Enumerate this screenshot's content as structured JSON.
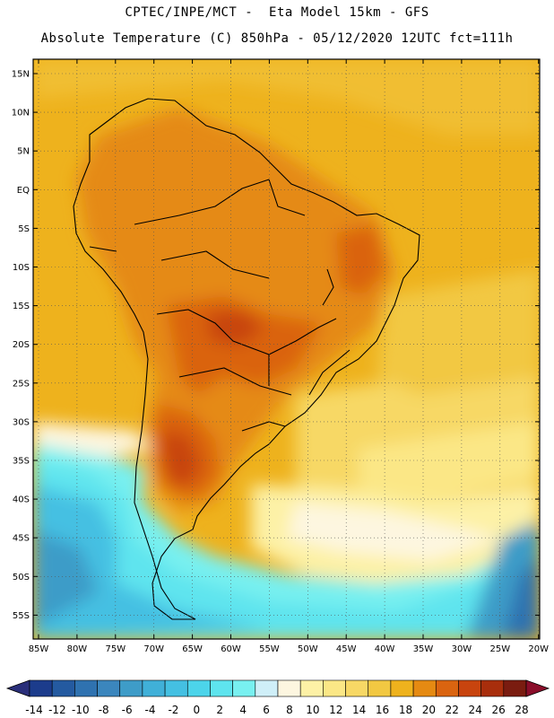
{
  "header": {
    "line1": "CPTEC/INPE/MCT -  Eta Model 15km - GFS",
    "line2": "Absolute Temperature (C) 850hPa - 05/12/2020 12UTC fct=111h"
  },
  "map": {
    "region": "South America",
    "lat_labels": [
      "15N",
      "10N",
      "5N",
      "EQ",
      "5S",
      "10S",
      "15S",
      "20S",
      "25S",
      "30S",
      "35S",
      "40S",
      "45S",
      "50S",
      "55S"
    ],
    "lon_labels": [
      "85W",
      "80W",
      "75W",
      "70W",
      "65W",
      "60W",
      "55W",
      "50W",
      "45W",
      "40W",
      "35W",
      "30W",
      "25W",
      "20W"
    ]
  },
  "colorbar": {
    "unit": "C",
    "labels": [
      "-14",
      "-12",
      "-10",
      "-8",
      "-6",
      "-4",
      "-2",
      "0",
      "2",
      "4",
      "6",
      "8",
      "10",
      "12",
      "14",
      "16",
      "18",
      "20",
      "22",
      "24",
      "26",
      "28"
    ],
    "colors": [
      "#1c3c8c",
      "#245aa0",
      "#2f72b0",
      "#3b86bd",
      "#3e9cc8",
      "#40b0d8",
      "#44c0e2",
      "#4cd4ea",
      "#5ee4ee",
      "#78f0f0",
      "#cfeff8",
      "#fdf6e0",
      "#fdf1a6",
      "#fbe786",
      "#f7d865",
      "#f2c842",
      "#eeb21d",
      "#e58a12",
      "#da6410",
      "#c8440e",
      "#a82e0c",
      "#7a1c10"
    ],
    "under_color": "#2a2f7a",
    "over_color": "#8a0d2a"
  }
}
